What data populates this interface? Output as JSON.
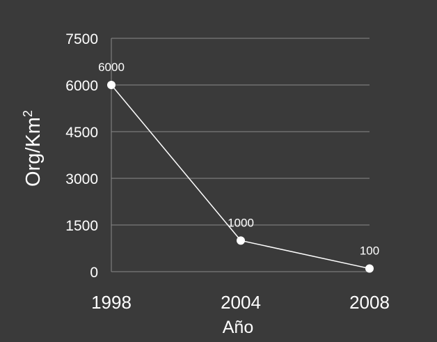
{
  "colors": {
    "background": "#3a3a3a",
    "text": "#ffffff",
    "grid": "#8a8a8a",
    "line": "#ffffff"
  },
  "chart_data": {
    "type": "line",
    "x": [
      "1998",
      "2004",
      "2008"
    ],
    "series": [
      {
        "values": [
          6000,
          1000,
          100
        ],
        "labels": [
          "6000",
          "1000",
          "100"
        ]
      }
    ],
    "xlabel": "Año",
    "ylabel_main": "Org/Km",
    "ylabel_sup": "2",
    "ylim": [
      0,
      7500
    ],
    "yticks": [
      0,
      1500,
      3000,
      4500,
      6000,
      7500
    ],
    "grid": true,
    "legend": "none"
  }
}
